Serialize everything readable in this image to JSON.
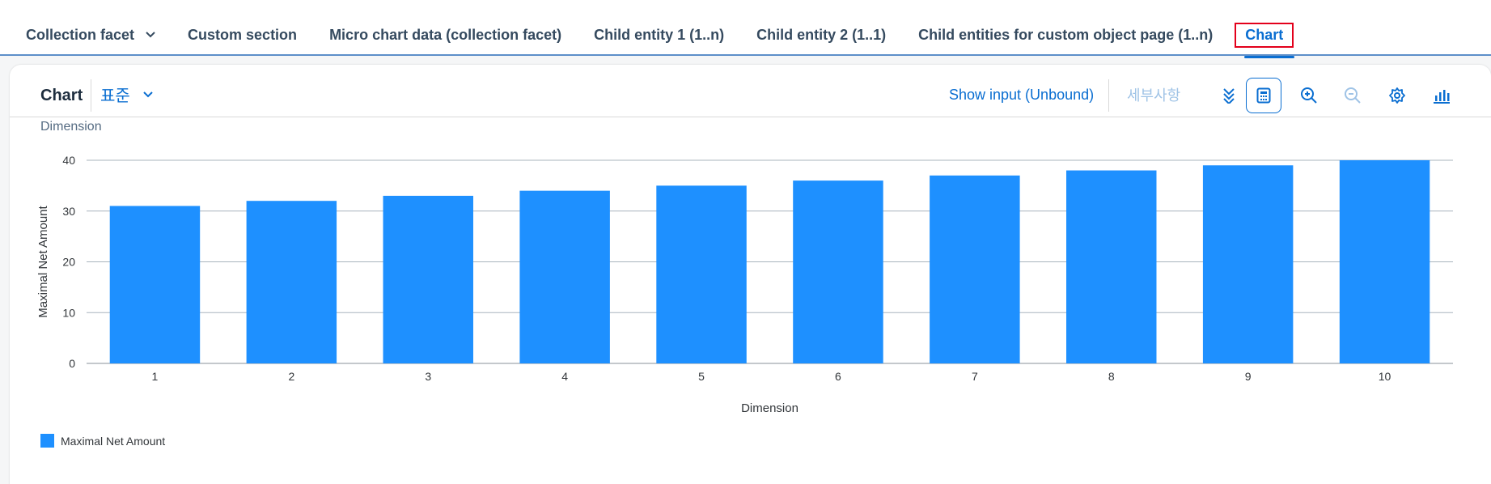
{
  "anchor_bar": {
    "tabs": [
      {
        "label": "Collection facet",
        "has_menu": true
      },
      {
        "label": "Custom section"
      },
      {
        "label": "Micro chart data (collection facet)"
      },
      {
        "label": "Child entity 1 (1..n)"
      },
      {
        "label": "Child entity 2 (1..1)"
      },
      {
        "label": "Child entities for custom object page (1..n)"
      },
      {
        "label": "Chart",
        "active": true
      }
    ]
  },
  "toolbar": {
    "title": "Chart",
    "variant": "표준",
    "show_input": "Show input (Unbound)",
    "details": "세부사항",
    "icons": [
      "double-chevron-down-icon",
      "table-view-icon",
      "zoom-in-icon",
      "zoom-out-icon",
      "settings-icon",
      "bar-chart-icon"
    ]
  },
  "dimension_label": "Dimension",
  "colors": {
    "bar": "#1e90ff",
    "accent": "#0a6ed1",
    "highlight_box": "#e3001b"
  },
  "chart_data": {
    "type": "bar",
    "categories": [
      "1",
      "2",
      "3",
      "4",
      "5",
      "6",
      "7",
      "8",
      "9",
      "10"
    ],
    "series": [
      {
        "name": "Maximal Net Amount",
        "values": [
          31,
          32,
          33,
          34,
          35,
          36,
          37,
          38,
          39,
          40
        ]
      }
    ],
    "xlabel": "Dimension",
    "ylabel": "Maximal Net Amount",
    "ylim": [
      0,
      40
    ],
    "yticks": [
      0,
      10,
      20,
      30,
      40
    ],
    "grid": true,
    "legend": "bottom-left"
  }
}
